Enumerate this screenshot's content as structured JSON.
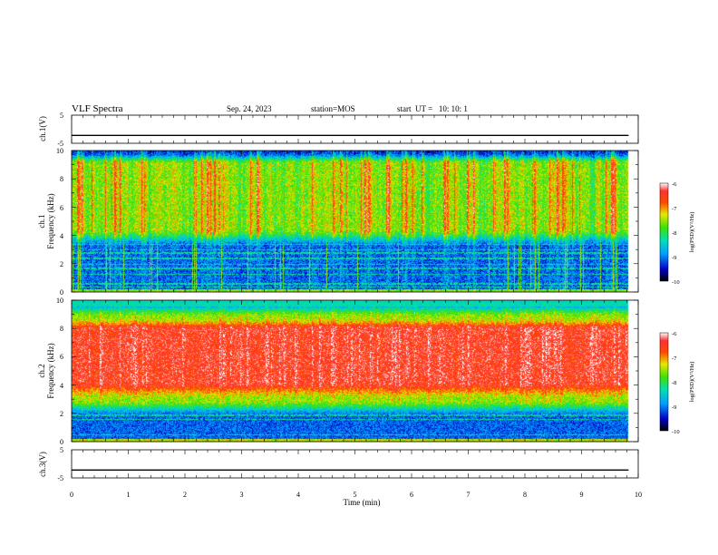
{
  "header": {
    "title": "VLF Spectra",
    "date": "Sep. 24, 2023",
    "station": "station=MOS",
    "start": "start  UT =   10: 10: 1"
  },
  "chart_data": [
    {
      "type": "line",
      "panel": "ch1-voltage",
      "ylabel": "ch.1(V)",
      "ylim": [
        -5,
        5
      ],
      "yticks": [
        "5",
        "-5"
      ],
      "xlim": [
        0,
        10
      ],
      "series": [
        {
          "x": [
            0,
            9.83
          ],
          "y": [
            -2.2,
            -2.2
          ]
        }
      ]
    },
    {
      "type": "heatmap",
      "panel": "ch1-spectrogram",
      "ylabel": "ch.1\nFrequency (kHz)",
      "ylim": [
        0,
        10
      ],
      "yticks": [
        "0",
        "2",
        "4",
        "6",
        "8",
        "10"
      ],
      "xlim": [
        0,
        10
      ],
      "data_xmax": 9.83,
      "colorbar": {
        "label": "log(PSD)(V²/Hz)",
        "range": [
          -10,
          -6
        ],
        "ticks": [
          "-6",
          "-7",
          "-8",
          "-9",
          "-10"
        ]
      }
    },
    {
      "type": "heatmap",
      "panel": "ch2-spectrogram",
      "ylabel": "ch.2\nFrequency (kHz)",
      "ylim": [
        0,
        10
      ],
      "yticks": [
        "0",
        "2",
        "4",
        "6",
        "8",
        "10"
      ],
      "xlim": [
        0,
        10
      ],
      "data_xmax": 9.83,
      "colorbar": {
        "label": "log(PSD)(V²/Hz)",
        "range": [
          -10,
          -6
        ],
        "ticks": [
          "-6",
          "-7",
          "-8",
          "-9",
          "-10"
        ]
      }
    },
    {
      "type": "line",
      "panel": "ch3-voltage",
      "ylabel": "ch.3(V)",
      "ylim": [
        -5,
        5
      ],
      "yticks": [
        "5",
        "-5"
      ],
      "xlim": [
        0,
        10
      ],
      "xlabel": "Time (min)",
      "xticks": [
        "0",
        "1",
        "2",
        "3",
        "4",
        "5",
        "6",
        "7",
        "8",
        "9",
        "10"
      ],
      "series": [
        {
          "x": [
            0,
            9.83
          ],
          "y": [
            -2.2,
            -2.2
          ]
        }
      ]
    }
  ]
}
